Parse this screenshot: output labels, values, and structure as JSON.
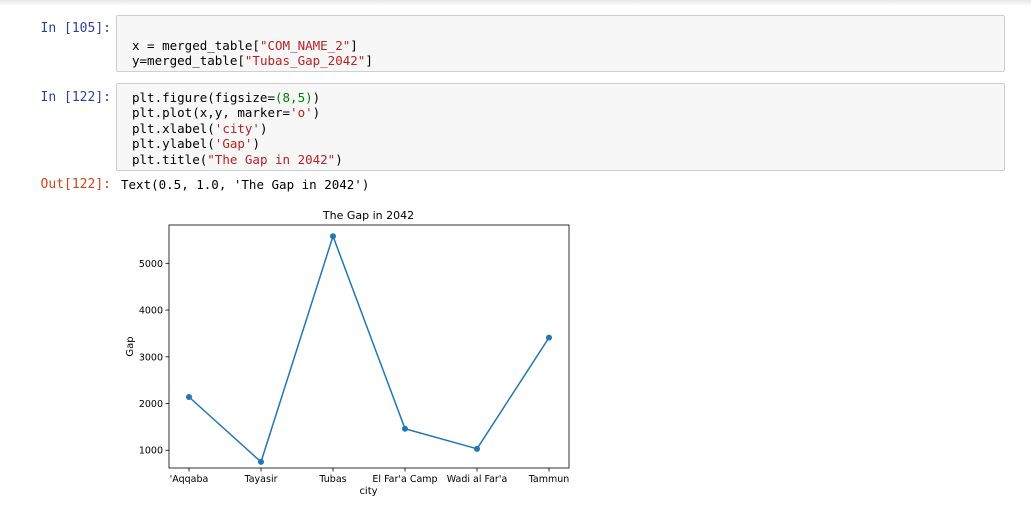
{
  "cells": [
    {
      "prompt": "In [105]:",
      "lines": [
        [
          "x = merged_table[",
          "\"COM_NAME_2\"",
          "]"
        ],
        [
          "y=merged_table[",
          "\"Tubas_Gap_2042\"",
          "]"
        ]
      ]
    },
    {
      "prompt": "In [122]:",
      "lines": [
        [
          "plt.figure(figsize=",
          "(8,5)",
          ")"
        ],
        [
          "plt.plot(x,y, marker=",
          "'o'",
          ")"
        ],
        [
          "plt.xlabel(",
          "'city'",
          ")"
        ],
        [
          "plt.ylabel(",
          "'Gap'",
          ")"
        ],
        [
          "plt.title(",
          "\"The Gap in 2042\"",
          ")"
        ]
      ]
    }
  ],
  "output": {
    "prompt": "Out[122]:",
    "text": "Text(0.5, 1.0, 'The Gap in 2042')"
  },
  "chart_data": {
    "type": "line",
    "title": "The Gap in 2042",
    "xlabel": "city",
    "ylabel": "Gap",
    "categories": [
      "'Aqqaba",
      "Tayasir",
      "Tubas",
      "El Far'a Camp",
      "Wadi al Far'a",
      "Tammun"
    ],
    "values": [
      2140,
      750,
      5580,
      1460,
      1030,
      3410
    ],
    "yticks": [
      1000,
      2000,
      3000,
      4000,
      5000
    ],
    "ylim": [
      620,
      5820
    ],
    "marker": "o",
    "color": "#1f77b4",
    "grid": false
  }
}
